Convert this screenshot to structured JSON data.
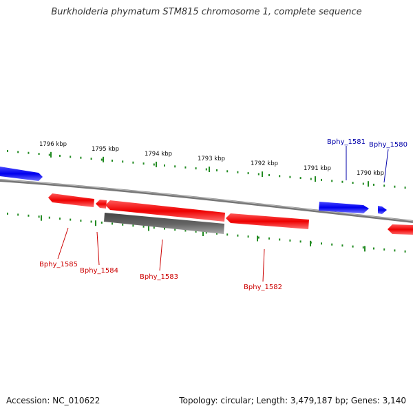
{
  "title": "Burkholderia phymatum STM815 chromosome 1, complete sequence",
  "footer": {
    "accession": "Accession: NC_010622",
    "summary": "Topology: circular; Length: 3,479,187 bp; Genes: 3,140"
  },
  "colors": {
    "forward_gene": "#0000ee",
    "reverse_gene": "#ee0000",
    "pseudo_gene": "#555555",
    "tick": "#228b22",
    "backbone": "#777777",
    "forward_label": "#0000aa",
    "reverse_label": "#cc0000"
  },
  "ticks": [
    {
      "label": "1796 kbp"
    },
    {
      "label": "1795 kbp"
    },
    {
      "label": "1794 kbp"
    },
    {
      "label": "1793 kbp"
    },
    {
      "label": "1792 kbp"
    },
    {
      "label": "1791 kbp"
    },
    {
      "label": "1790 kbp"
    }
  ],
  "gene_labels": {
    "forward": [
      "Bphy_1581",
      "Bphy_1580"
    ],
    "reverse": [
      "Bphy_1585",
      "Bphy_1584",
      "Bphy_1583",
      "Bphy_1582"
    ]
  }
}
